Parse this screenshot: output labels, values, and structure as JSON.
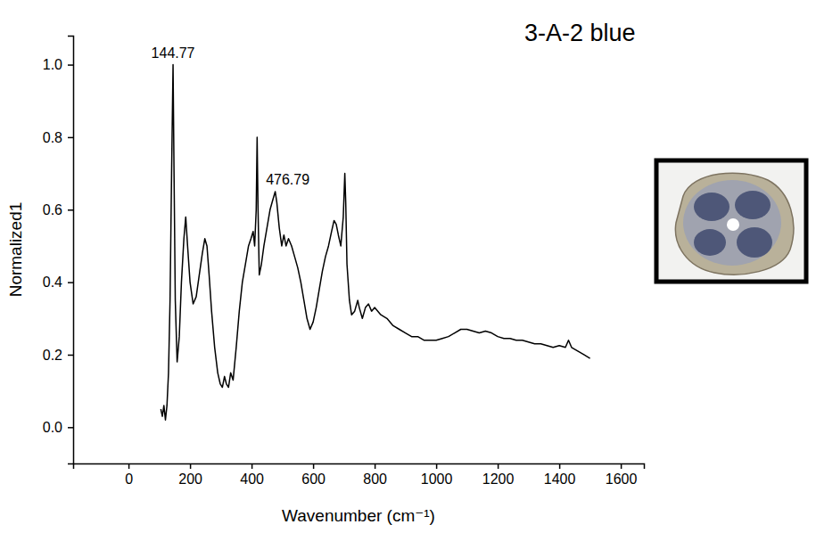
{
  "chart_data": {
    "type": "line",
    "title": "3-A-2 blue",
    "xlabel": "Wavenumber (cm⁻¹)",
    "ylabel": "Normalized1",
    "color": "#000000",
    "xlim": [
      -180,
      1675
    ],
    "ylim": [
      -0.1,
      1.08
    ],
    "xticks": [
      0,
      200,
      400,
      600,
      800,
      1000,
      1200,
      1400,
      1600
    ],
    "yticks": [
      {
        "value": 0,
        "label": "0.0"
      },
      0.2,
      0.4,
      0.6,
      0.8,
      {
        "value": 1,
        "label": "1.0"
      }
    ],
    "annotations": [
      {
        "text": "144.77",
        "x": 144.77,
        "y": 1.0
      },
      {
        "text": "476.79",
        "x": 476.79,
        "y": 0.65
      }
    ],
    "x": [
      105,
      110,
      115,
      120,
      125,
      130,
      135,
      140,
      144.77,
      148,
      152,
      158,
      165,
      172,
      180,
      186,
      192,
      200,
      210,
      220,
      230,
      240,
      248,
      255,
      262,
      270,
      280,
      290,
      298,
      305,
      312,
      318,
      325,
      332,
      340,
      350,
      360,
      370,
      380,
      390,
      398,
      405,
      410,
      415,
      418,
      421,
      425,
      432,
      440,
      450,
      460,
      470,
      476.79,
      482,
      490,
      498,
      505,
      512,
      520,
      530,
      540,
      550,
      560,
      570,
      580,
      590,
      600,
      610,
      620,
      630,
      640,
      650,
      660,
      668,
      675,
      682,
      690,
      698,
      703,
      706,
      710,
      718,
      725,
      735,
      745,
      750,
      760,
      770,
      780,
      790,
      800,
      820,
      840,
      860,
      880,
      900,
      920,
      940,
      960,
      980,
      1000,
      1020,
      1040,
      1060,
      1080,
      1100,
      1120,
      1140,
      1160,
      1180,
      1200,
      1220,
      1240,
      1260,
      1280,
      1300,
      1320,
      1340,
      1360,
      1380,
      1400,
      1420,
      1430,
      1440,
      1460,
      1480,
      1500
    ],
    "values": [
      0.05,
      0.03,
      0.06,
      0.02,
      0.06,
      0.15,
      0.35,
      0.7,
      1.0,
      0.7,
      0.35,
      0.18,
      0.25,
      0.4,
      0.52,
      0.58,
      0.5,
      0.4,
      0.34,
      0.36,
      0.42,
      0.48,
      0.52,
      0.5,
      0.42,
      0.32,
      0.22,
      0.15,
      0.12,
      0.11,
      0.14,
      0.12,
      0.11,
      0.15,
      0.13,
      0.22,
      0.32,
      0.4,
      0.45,
      0.5,
      0.52,
      0.54,
      0.5,
      0.6,
      0.8,
      0.6,
      0.42,
      0.45,
      0.5,
      0.55,
      0.6,
      0.63,
      0.65,
      0.62,
      0.55,
      0.5,
      0.53,
      0.5,
      0.52,
      0.5,
      0.47,
      0.44,
      0.4,
      0.35,
      0.3,
      0.27,
      0.29,
      0.33,
      0.38,
      0.43,
      0.47,
      0.5,
      0.54,
      0.57,
      0.56,
      0.53,
      0.5,
      0.58,
      0.7,
      0.62,
      0.45,
      0.35,
      0.31,
      0.32,
      0.35,
      0.33,
      0.3,
      0.33,
      0.34,
      0.32,
      0.33,
      0.31,
      0.3,
      0.28,
      0.27,
      0.26,
      0.25,
      0.25,
      0.24,
      0.24,
      0.24,
      0.245,
      0.25,
      0.26,
      0.27,
      0.27,
      0.265,
      0.26,
      0.265,
      0.26,
      0.25,
      0.245,
      0.245,
      0.24,
      0.24,
      0.235,
      0.23,
      0.23,
      0.225,
      0.22,
      0.225,
      0.22,
      0.24,
      0.22,
      0.21,
      0.2,
      0.19
    ]
  }
}
